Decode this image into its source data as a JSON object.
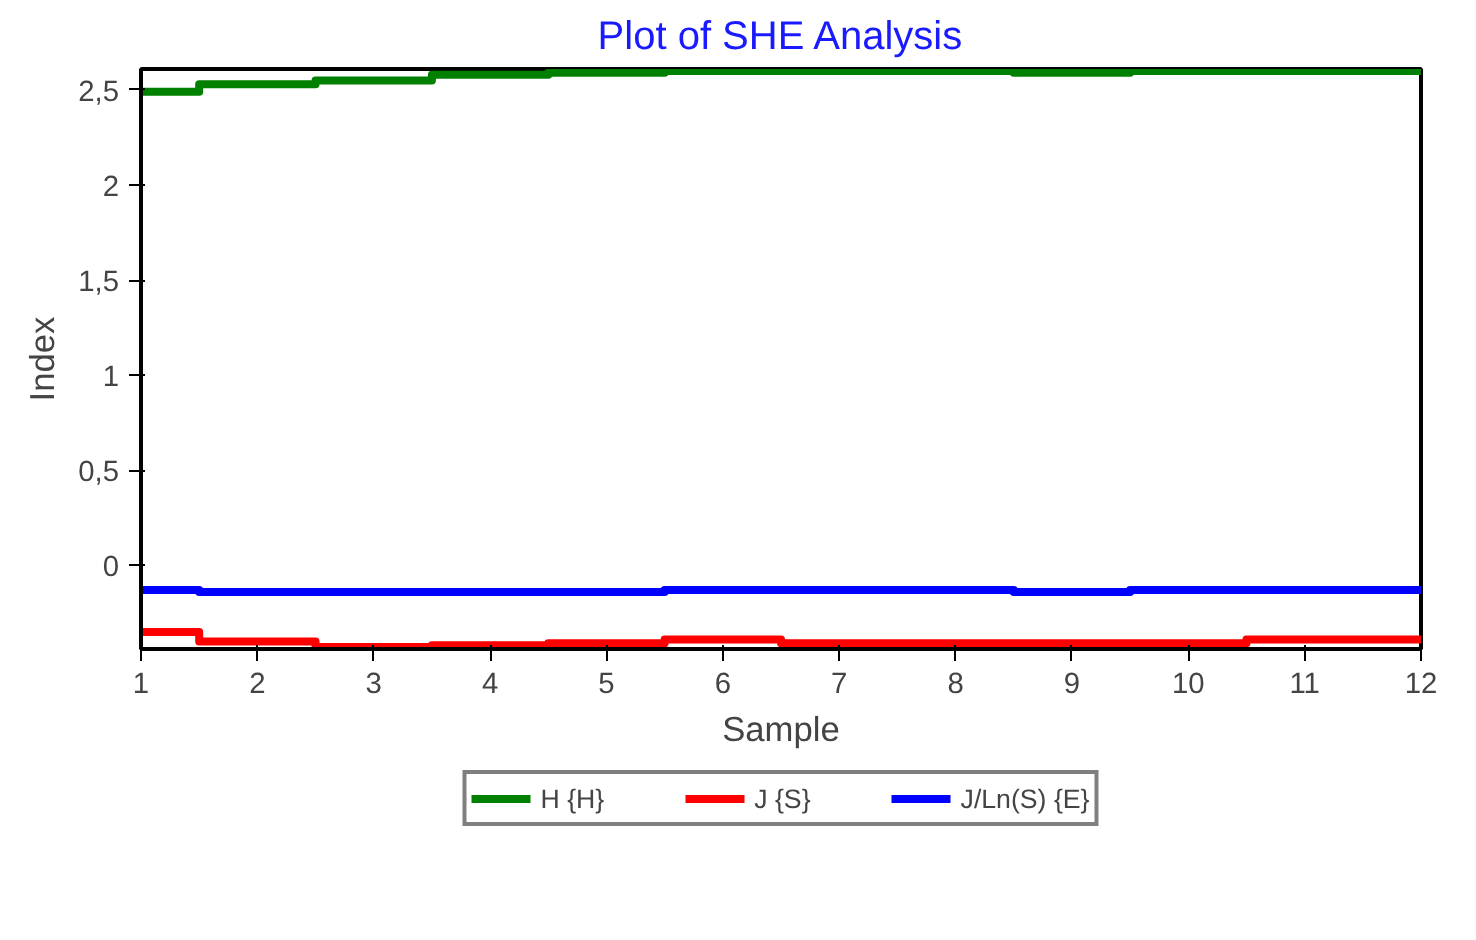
{
  "chart_data": {
    "type": "step",
    "title": "Plot of SHE Analysis",
    "xlabel": "Sample",
    "ylabel": "Index",
    "x": [
      1,
      2,
      3,
      4,
      5,
      6,
      7,
      8,
      9,
      10,
      11,
      12
    ],
    "series": [
      {
        "name": "H {H}",
        "color": "#008000",
        "values": [
          2.49,
          2.53,
          2.55,
          2.58,
          2.59,
          2.6,
          2.6,
          2.6,
          2.59,
          2.6,
          2.6,
          2.6
        ]
      },
      {
        "name": "J {S}",
        "color": "#ff0000",
        "values": [
          -0.35,
          -0.4,
          -0.43,
          -0.42,
          -0.41,
          -0.39,
          -0.41,
          -0.41,
          -0.41,
          -0.41,
          -0.39,
          -0.39
        ]
      },
      {
        "name": "J/Ln(S) {E}",
        "color": "#0000ff",
        "values": [
          -0.13,
          -0.14,
          -0.14,
          -0.14,
          -0.14,
          -0.13,
          -0.13,
          -0.13,
          -0.14,
          -0.13,
          -0.13,
          -0.13
        ]
      }
    ],
    "xlim": [
      1,
      12
    ],
    "ylim": [
      -0.44,
      2.61
    ],
    "xticks": [
      1,
      2,
      3,
      4,
      5,
      6,
      7,
      8,
      9,
      10,
      11,
      12
    ],
    "yticks": [
      {
        "value": 0,
        "label": "0"
      },
      {
        "value": 0.5,
        "label": "0,5"
      },
      {
        "value": 1,
        "label": "1"
      },
      {
        "value": 1.5,
        "label": "1,5"
      },
      {
        "value": 2,
        "label": "2"
      },
      {
        "value": 2.5,
        "label": "2,5"
      }
    ],
    "grid": false,
    "legend": "bottom",
    "marker": "none",
    "line_style": "solid"
  }
}
